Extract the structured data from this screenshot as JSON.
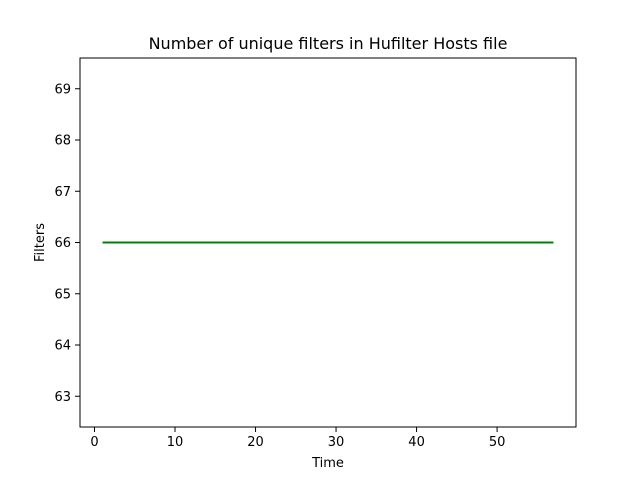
{
  "chart_data": {
    "type": "line",
    "title": "Number of unique filters in Hufilter Hosts file",
    "xlabel": "Time",
    "ylabel": "Filters",
    "xlim": [
      -1.8,
      59.8
    ],
    "ylim": [
      62.4,
      69.6
    ],
    "xticks": [
      0,
      10,
      20,
      30,
      40,
      50
    ],
    "yticks": [
      63,
      64,
      65,
      66,
      67,
      68,
      69
    ],
    "grid": false,
    "series": [
      {
        "name": "Filters",
        "color": "#008000",
        "x": [
          1,
          57
        ],
        "y": [
          66,
          66
        ]
      }
    ]
  }
}
